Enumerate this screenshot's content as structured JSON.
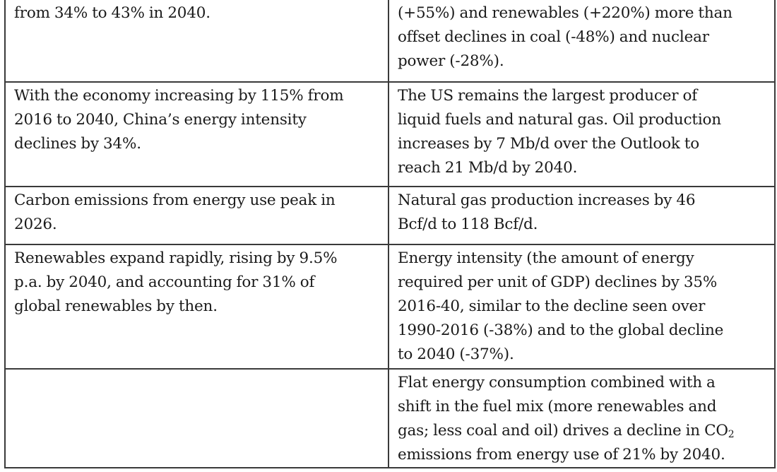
{
  "table": {
    "rows": [
      {
        "left": "from 34% to 43% in 2040.",
        "right": "(+55%) and renewables (+220%) more than\noffset declines in coal (-48%) and nuclear\npower (-28%)."
      },
      {
        "left": "With the economy increasing by 115% from\n2016 to 2040, China’s energy intensity\ndeclines by 34%.",
        "right": "The US remains the largest producer of\nliquid fuels and natural gas. Oil production\nincreases by 7 Mb/d over the Outlook to\nreach 21 Mb/d by 2040."
      },
      {
        "left": "Carbon emissions from energy use peak in\n2026.",
        "right": "Natural gas production increases by 46\nBcf/d to 118 Bcf/d."
      },
      {
        "left": "Renewables expand rapidly, rising by 9.5%\np.a. by 2040, and accounting for 31% of\nglobal renewables by then.",
        "right": "Energy intensity (the amount of energy\nrequired per unit of GDP) declines by 35%\n2016-40, similar to the decline seen over\n1990-2016 (-38%) and to the global decline\nto 2040 (-37%)."
      },
      {
        "left": "",
        "right_pre": "Flat energy consumption combined with a\nshift in the fuel mix (more renewables and\ngas; less coal and oil) drives a decline in CO",
        "right_sub": "2",
        "right_post": "\nemissions from energy use of 21% by 2040."
      }
    ]
  }
}
